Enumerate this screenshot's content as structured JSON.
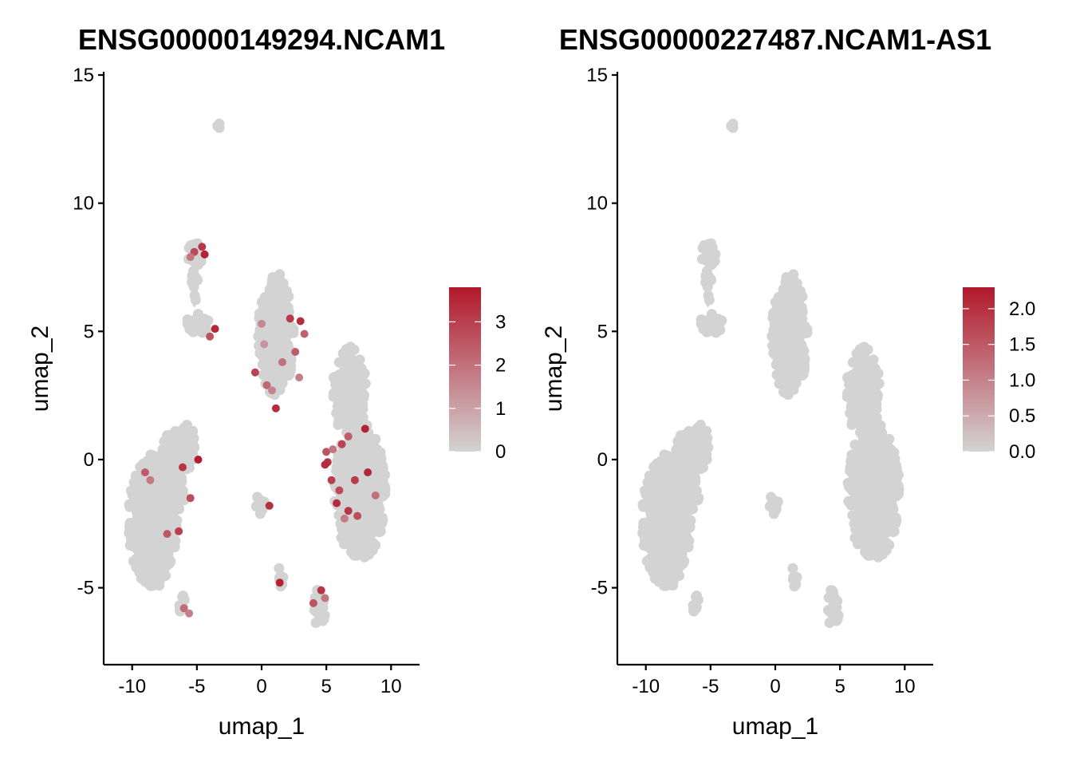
{
  "chart_data": [
    {
      "type": "scatter",
      "title": "ENSG00000149294.NCAM1",
      "xlabel": "umap_1",
      "ylabel": "umap_2",
      "xlim": [
        -12.2,
        12.2
      ],
      "ylim": [
        -8,
        15
      ],
      "xticks": [
        -10,
        -5,
        0,
        5,
        10
      ],
      "xtick_labels": [
        "-10",
        "-5",
        "0",
        "5",
        "10"
      ],
      "yticks": [
        -5,
        0,
        5,
        10,
        15
      ],
      "ytick_labels": [
        "-5",
        "0",
        "5",
        "10",
        "15"
      ],
      "grid": false,
      "colorbar": {
        "min": 0,
        "max": 3.8,
        "ticks": [
          0,
          1,
          2,
          3
        ],
        "tick_labels": [
          "0",
          "1",
          "2",
          "3"
        ],
        "low_color": "#d3d3d3",
        "high_color": "#b2182b",
        "placement": "right"
      },
      "clusters": [
        {
          "name": "left-lobe",
          "cx": -8.4,
          "cy": -2.4,
          "rx": 1.9,
          "ry": 2.6
        },
        {
          "name": "left-upper",
          "cx": -6.8,
          "cy": -0.6,
          "rx": 1.1,
          "ry": 1.8
        },
        {
          "name": "left-arm",
          "cx": -5.7,
          "cy": 0.5,
          "rx": 0.55,
          "ry": 0.9
        },
        {
          "name": "left-tail",
          "cx": -6.1,
          "cy": -5.7,
          "rx": 0.35,
          "ry": 0.4
        },
        {
          "name": "mid-upper",
          "cx": -5.0,
          "cy": 5.3,
          "rx": 0.9,
          "ry": 0.45
        },
        {
          "name": "mid-stem",
          "cx": -5.2,
          "cy": 6.6,
          "rx": 0.3,
          "ry": 0.8
        },
        {
          "name": "mid-top",
          "cx": -5.1,
          "cy": 8.0,
          "rx": 0.6,
          "ry": 0.5
        },
        {
          "name": "center-upper",
          "cx": 1.1,
          "cy": 4.8,
          "rx": 1.4,
          "ry": 2.3
        },
        {
          "name": "center-tip",
          "cx": 1.3,
          "cy": 6.9,
          "rx": 0.5,
          "ry": 0.5
        },
        {
          "name": "center-small",
          "cx": -0.2,
          "cy": -1.8,
          "rx": 0.45,
          "ry": 0.4
        },
        {
          "name": "center-bottom",
          "cx": 1.5,
          "cy": -4.6,
          "rx": 0.3,
          "ry": 0.45
        },
        {
          "name": "right-top",
          "cx": 6.8,
          "cy": 2.6,
          "rx": 1.3,
          "ry": 1.8
        },
        {
          "name": "right-lobe",
          "cx": 7.6,
          "cy": -1.2,
          "rx": 2.0,
          "ry": 2.7
        },
        {
          "name": "right-bottom",
          "cx": 4.5,
          "cy": -5.8,
          "rx": 0.5,
          "ry": 0.8
        },
        {
          "name": "isolated-top",
          "cx": -3.3,
          "cy": 13.0,
          "rx": 0.15,
          "ry": 0.15
        }
      ],
      "expressing_points": [
        {
          "x": -5.2,
          "y": 8.1,
          "v": 2.8
        },
        {
          "x": -4.4,
          "y": 8.0,
          "v": 3.6
        },
        {
          "x": -5.5,
          "y": 7.9,
          "v": 1.9
        },
        {
          "x": -4.6,
          "y": 8.3,
          "v": 3.1
        },
        {
          "x": -3.6,
          "y": 5.1,
          "v": 3.5
        },
        {
          "x": -4.0,
          "y": 4.8,
          "v": 2.6
        },
        {
          "x": 0.0,
          "y": 5.3,
          "v": 1.5
        },
        {
          "x": 0.2,
          "y": 4.5,
          "v": 1.3
        },
        {
          "x": -0.5,
          "y": 3.4,
          "v": 2.9
        },
        {
          "x": 0.4,
          "y": 2.9,
          "v": 2.2
        },
        {
          "x": 1.1,
          "y": 2.0,
          "v": 3.4
        },
        {
          "x": 2.2,
          "y": 5.5,
          "v": 3.1
        },
        {
          "x": 2.6,
          "y": 4.2,
          "v": 2.4
        },
        {
          "x": 1.6,
          "y": 3.8,
          "v": 2.0
        },
        {
          "x": 0.8,
          "y": 2.7,
          "v": 1.6
        },
        {
          "x": -9.0,
          "y": -0.5,
          "v": 2.4
        },
        {
          "x": -8.6,
          "y": -0.8,
          "v": 1.8
        },
        {
          "x": -6.1,
          "y": -0.3,
          "v": 3.2
        },
        {
          "x": -4.9,
          "y": 0.0,
          "v": 3.7
        },
        {
          "x": -5.5,
          "y": -1.5,
          "v": 2.7
        },
        {
          "x": -6.4,
          "y": -2.8,
          "v": 3.0
        },
        {
          "x": -7.3,
          "y": -2.9,
          "v": 2.5
        },
        {
          "x": -6.0,
          "y": -5.8,
          "v": 2.1
        },
        {
          "x": -5.6,
          "y": -6.0,
          "v": 1.7
        },
        {
          "x": 0.6,
          "y": -1.8,
          "v": 3.3
        },
        {
          "x": 1.4,
          "y": -4.8,
          "v": 3.6
        },
        {
          "x": 4.6,
          "y": -5.1,
          "v": 3.2
        },
        {
          "x": 4.0,
          "y": -5.6,
          "v": 2.6
        },
        {
          "x": 4.9,
          "y": -5.4,
          "v": 1.9
        },
        {
          "x": 5.0,
          "y": 0.3,
          "v": 2.6
        },
        {
          "x": 5.1,
          "y": -0.1,
          "v": 3.3
        },
        {
          "x": 5.5,
          "y": 0.4,
          "v": 1.9
        },
        {
          "x": 6.2,
          "y": 0.6,
          "v": 2.9
        },
        {
          "x": 6.7,
          "y": 0.9,
          "v": 2.4
        },
        {
          "x": 8.0,
          "y": 1.2,
          "v": 3.6
        },
        {
          "x": 7.2,
          "y": -0.8,
          "v": 3.1
        },
        {
          "x": 8.2,
          "y": -0.5,
          "v": 3.5
        },
        {
          "x": 6.0,
          "y": -1.2,
          "v": 2.8
        },
        {
          "x": 5.8,
          "y": -1.7,
          "v": 3.4
        },
        {
          "x": 7.4,
          "y": -2.2,
          "v": 2.7
        },
        {
          "x": 6.7,
          "y": -2.0,
          "v": 3.2
        },
        {
          "x": 8.8,
          "y": -1.4,
          "v": 2.0
        },
        {
          "x": 5.4,
          "y": -0.8,
          "v": 3.0
        },
        {
          "x": 4.9,
          "y": -0.2,
          "v": 3.4
        },
        {
          "x": 6.4,
          "y": -2.3,
          "v": 1.8
        },
        {
          "x": 3.0,
          "y": 5.4,
          "v": 3.4
        },
        {
          "x": 3.3,
          "y": 4.9,
          "v": 2.3
        },
        {
          "x": 2.9,
          "y": 3.2,
          "v": 1.7
        }
      ]
    },
    {
      "type": "scatter",
      "title": "ENSG00000227487.NCAM1-AS1",
      "xlabel": "umap_1",
      "ylabel": "umap_2",
      "xlim": [
        -12.2,
        12.2
      ],
      "ylim": [
        -8,
        15
      ],
      "xticks": [
        -10,
        -5,
        0,
        5,
        10
      ],
      "xtick_labels": [
        "-10",
        "-5",
        "0",
        "5",
        "10"
      ],
      "yticks": [
        -5,
        0,
        5,
        10,
        15
      ],
      "ytick_labels": [
        "-5",
        "0",
        "5",
        "10",
        "15"
      ],
      "grid": false,
      "colorbar": {
        "min": 0,
        "max": 2.3,
        "ticks": [
          0,
          0.5,
          1,
          1.5,
          2
        ],
        "tick_labels": [
          "0.0",
          "0.5",
          "1.0",
          "1.5",
          "2.0"
        ],
        "low_color": "#d3d3d3",
        "high_color": "#b2182b",
        "placement": "right"
      },
      "clusters": [
        {
          "name": "left-lobe",
          "cx": -8.4,
          "cy": -2.4,
          "rx": 1.9,
          "ry": 2.6
        },
        {
          "name": "left-upper",
          "cx": -6.8,
          "cy": -0.6,
          "rx": 1.1,
          "ry": 1.8
        },
        {
          "name": "left-arm",
          "cx": -5.7,
          "cy": 0.5,
          "rx": 0.55,
          "ry": 0.9
        },
        {
          "name": "left-tail",
          "cx": -6.1,
          "cy": -5.7,
          "rx": 0.35,
          "ry": 0.4
        },
        {
          "name": "mid-upper",
          "cx": -5.0,
          "cy": 5.3,
          "rx": 0.9,
          "ry": 0.45
        },
        {
          "name": "mid-stem",
          "cx": -5.2,
          "cy": 6.6,
          "rx": 0.3,
          "ry": 0.8
        },
        {
          "name": "mid-top",
          "cx": -5.1,
          "cy": 8.0,
          "rx": 0.6,
          "ry": 0.5
        },
        {
          "name": "center-upper",
          "cx": 1.1,
          "cy": 4.8,
          "rx": 1.4,
          "ry": 2.3
        },
        {
          "name": "center-tip",
          "cx": 1.3,
          "cy": 6.9,
          "rx": 0.5,
          "ry": 0.5
        },
        {
          "name": "center-small",
          "cx": -0.2,
          "cy": -1.8,
          "rx": 0.45,
          "ry": 0.4
        },
        {
          "name": "center-bottom",
          "cx": 1.5,
          "cy": -4.6,
          "rx": 0.3,
          "ry": 0.45
        },
        {
          "name": "right-top",
          "cx": 6.8,
          "cy": 2.6,
          "rx": 1.3,
          "ry": 1.8
        },
        {
          "name": "right-lobe",
          "cx": 7.6,
          "cy": -1.2,
          "rx": 2.0,
          "ry": 2.7
        },
        {
          "name": "right-bottom",
          "cx": 4.5,
          "cy": -5.8,
          "rx": 0.5,
          "ry": 0.8
        },
        {
          "name": "isolated-top",
          "cx": -3.3,
          "cy": 13.0,
          "rx": 0.15,
          "ry": 0.15
        }
      ],
      "expressing_points": []
    }
  ]
}
